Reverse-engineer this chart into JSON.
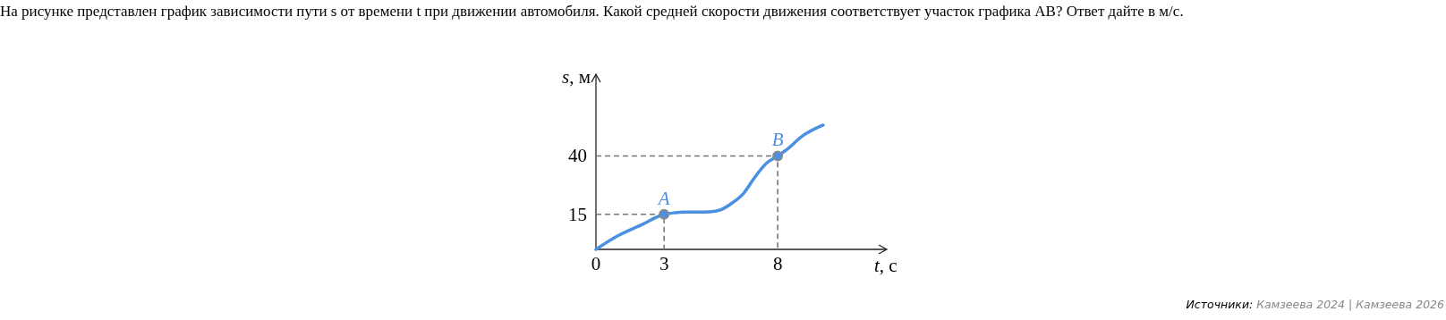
{
  "chart_data": {
    "type": "line",
    "title": "На рисунке представлен график зависимости пути s от времени t при движении автомобиля. Какой средней скорости движения соответствует участок графика AB? Ответ дайте в м/с.",
    "xlabel": "t, с",
    "ylabel": "s, м",
    "xlim": [
      0,
      12.8
    ],
    "ylim": [
      0,
      75
    ],
    "xticks": [
      0,
      3,
      8
    ],
    "yticks": [
      15,
      40
    ],
    "grid": false,
    "line_style": "solid",
    "series": [
      {
        "x": [
          0,
          1,
          2,
          3,
          3.5,
          4,
          4.5,
          5,
          5.5,
          6,
          6.5,
          7,
          7.5,
          8,
          8.5,
          9,
          10
        ],
        "values": [
          0,
          6,
          10.5,
          15,
          15.7,
          16,
          16,
          16.1,
          17,
          19.9,
          24,
          31,
          36.8,
          40,
          43.5,
          47.9,
          53.2
        ],
        "color": "#4a90e2"
      },
      {
        "x": [
          0,
          3,
          3
        ],
        "values": [
          15,
          15,
          0
        ],
        "color": "#777777",
        "line_style": "dashed"
      },
      {
        "x": [
          0,
          8,
          8
        ],
        "values": [
          40,
          40,
          0
        ],
        "color": "#777777",
        "line_style": "dashed"
      },
      {
        "type": "scatter",
        "x": [
          3,
          8
        ],
        "values": [
          15,
          40
        ],
        "color": "#4a90e2"
      }
    ],
    "annotations": [
      {
        "text": "A",
        "x": 3,
        "y": 15
      },
      {
        "text": "B",
        "x": 8,
        "y": 40
      },
      "Источники: Камзеева 2024 | Камзеева 2026"
    ]
  }
}
